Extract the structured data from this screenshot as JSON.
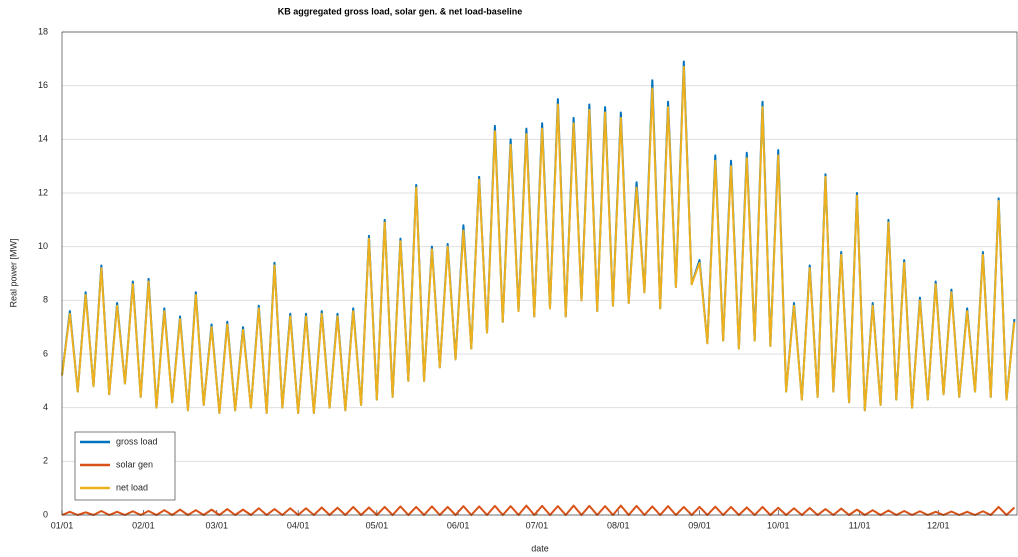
{
  "chart_data": {
    "type": "line",
    "title": "KB aggregated gross load, solar gen. & net load-baseline",
    "x_label": "date",
    "y_label": "Real power [MW]",
    "x": [
      "01/01",
      "01/04",
      "01/07",
      "01/10",
      "01/13",
      "01/16",
      "01/19",
      "01/22",
      "01/25",
      "01/28",
      "01/31",
      "02/03",
      "02/06",
      "02/09",
      "02/12",
      "02/15",
      "02/18",
      "02/21",
      "02/24",
      "02/27",
      "03/02",
      "03/05",
      "03/08",
      "03/11",
      "03/14",
      "03/17",
      "03/20",
      "03/23",
      "03/26",
      "03/29",
      "04/01",
      "04/04",
      "04/07",
      "04/10",
      "04/13",
      "04/16",
      "04/19",
      "04/22",
      "04/25",
      "04/28",
      "05/01",
      "05/04",
      "05/07",
      "05/10",
      "05/13",
      "05/16",
      "05/19",
      "05/22",
      "05/25",
      "05/28",
      "05/31",
      "06/03",
      "06/06",
      "06/09",
      "06/12",
      "06/15",
      "06/18",
      "06/21",
      "06/24",
      "06/27",
      "06/30",
      "07/03",
      "07/06",
      "07/09",
      "07/12",
      "07/15",
      "07/18",
      "07/21",
      "07/24",
      "07/27",
      "07/30",
      "08/02",
      "08/05",
      "08/08",
      "08/11",
      "08/14",
      "08/17",
      "08/20",
      "08/23",
      "08/26",
      "08/29",
      "09/01",
      "09/04",
      "09/07",
      "09/10",
      "09/13",
      "09/16",
      "09/19",
      "09/22",
      "09/25",
      "09/28",
      "10/01",
      "10/04",
      "10/07",
      "10/10",
      "10/13",
      "10/16",
      "10/19",
      "10/22",
      "10/25",
      "10/28",
      "10/31",
      "11/03",
      "11/06",
      "11/09",
      "11/12",
      "11/15",
      "11/18",
      "11/21",
      "11/24",
      "11/27",
      "11/30",
      "12/03",
      "12/06",
      "12/09",
      "12/12",
      "12/15",
      "12/18",
      "12/21",
      "12/24",
      "12/27",
      "12/30"
    ],
    "series": [
      {
        "name": "gross load",
        "color": "#0072bd",
        "values": [
          5.2,
          7.6,
          4.6,
          8.3,
          4.8,
          9.3,
          4.5,
          7.9,
          4.9,
          8.7,
          4.4,
          8.8,
          4.0,
          7.7,
          4.2,
          7.4,
          3.9,
          8.3,
          4.1,
          7.1,
          3.8,
          7.2,
          3.9,
          7.0,
          4.0,
          7.8,
          3.8,
          9.4,
          4.0,
          7.5,
          3.8,
          7.5,
          3.8,
          7.6,
          4.0,
          7.5,
          3.9,
          7.7,
          4.1,
          10.4,
          4.3,
          11.0,
          4.4,
          10.3,
          5.0,
          12.3,
          5.0,
          10.0,
          5.5,
          10.1,
          5.8,
          10.8,
          6.2,
          12.6,
          6.8,
          14.5,
          7.2,
          14.0,
          7.6,
          14.4,
          7.4,
          14.6,
          7.7,
          15.5,
          7.4,
          14.8,
          8.0,
          15.3,
          7.6,
          15.2,
          7.8,
          15.0,
          7.9,
          12.4,
          8.3,
          16.2,
          7.7,
          15.4,
          8.5,
          16.9,
          8.6,
          9.5,
          6.4,
          13.4,
          6.5,
          13.2,
          6.2,
          13.5,
          6.5,
          15.4,
          6.3,
          13.6,
          4.6,
          7.9,
          4.3,
          9.3,
          4.4,
          12.7,
          4.6,
          9.8,
          4.2,
          12.0,
          3.9,
          7.9,
          4.1,
          11.0,
          4.3,
          9.5,
          4.0,
          8.1,
          4.3,
          8.7,
          4.5,
          8.4,
          4.4,
          7.7,
          4.6,
          9.8,
          4.4,
          11.8,
          4.3,
          7.3
        ]
      },
      {
        "name": "solar gen",
        "color": "#d95319",
        "values": [
          0,
          0.12,
          0,
          0.1,
          0,
          0.15,
          0,
          0.12,
          0,
          0.14,
          0,
          0.15,
          0,
          0.18,
          0,
          0.2,
          0,
          0.18,
          0,
          0.2,
          0,
          0.22,
          0,
          0.2,
          0,
          0.25,
          0,
          0.22,
          0,
          0.25,
          0,
          0.25,
          0,
          0.28,
          0,
          0.27,
          0,
          0.3,
          0,
          0.28,
          0,
          0.3,
          0,
          0.32,
          0,
          0.3,
          0,
          0.32,
          0,
          0.3,
          0,
          0.33,
          0,
          0.32,
          0,
          0.34,
          0,
          0.33,
          0,
          0.35,
          0,
          0.34,
          0,
          0.33,
          0,
          0.35,
          0,
          0.34,
          0,
          0.33,
          0,
          0.35,
          0,
          0.34,
          0,
          0.32,
          0,
          0.33,
          0,
          0.3,
          0,
          0.3,
          0,
          0.31,
          0,
          0.3,
          0,
          0.28,
          0,
          0.3,
          0,
          0.27,
          0,
          0.25,
          0,
          0.26,
          0,
          0.22,
          0,
          0.24,
          0,
          0.2,
          0,
          0.18,
          0,
          0.17,
          0,
          0.15,
          0,
          0.14,
          0,
          0.12,
          0,
          0.13,
          0,
          0.12,
          0,
          0.14,
          0,
          0.3,
          0,
          0.28
        ]
      },
      {
        "name": "net load",
        "color": "#edb120",
        "values": [
          5.2,
          7.5,
          4.6,
          8.2,
          4.8,
          9.2,
          4.5,
          7.8,
          4.9,
          8.6,
          4.4,
          8.7,
          4.0,
          7.6,
          4.2,
          7.3,
          3.9,
          8.2,
          4.1,
          7.0,
          3.8,
          7.1,
          3.9,
          6.9,
          4.0,
          7.7,
          3.8,
          9.3,
          4.0,
          7.4,
          3.8,
          7.4,
          3.8,
          7.5,
          4.0,
          7.4,
          3.9,
          7.6,
          4.1,
          10.3,
          4.3,
          10.9,
          4.4,
          10.2,
          5.0,
          12.2,
          5.0,
          9.9,
          5.5,
          10.0,
          5.8,
          10.6,
          6.2,
          12.5,
          6.8,
          14.3,
          7.2,
          13.8,
          7.6,
          14.2,
          7.4,
          14.4,
          7.7,
          15.3,
          7.4,
          14.6,
          8.0,
          15.1,
          7.6,
          15.0,
          7.8,
          14.8,
          7.9,
          12.2,
          8.3,
          15.9,
          7.7,
          15.2,
          8.5,
          16.7,
          8.6,
          9.4,
          6.4,
          13.2,
          6.5,
          13.0,
          6.2,
          13.3,
          6.5,
          15.2,
          6.3,
          13.4,
          4.6,
          7.8,
          4.3,
          9.2,
          4.4,
          12.6,
          4.6,
          9.7,
          4.2,
          11.9,
          3.9,
          7.8,
          4.1,
          10.9,
          4.3,
          9.4,
          4.0,
          8.0,
          4.3,
          8.6,
          4.5,
          8.3,
          4.4,
          7.6,
          4.6,
          9.7,
          4.4,
          11.7,
          4.3,
          7.2
        ]
      }
    ],
    "xlim": [
      "01/01",
      "12/31"
    ],
    "xticks": [
      "01/01",
      "02/01",
      "03/01",
      "04/01",
      "05/01",
      "06/01",
      "07/01",
      "08/01",
      "09/01",
      "10/01",
      "11/01",
      "12/01"
    ],
    "ylim": [
      0,
      18
    ],
    "yticks": [
      0,
      2,
      4,
      6,
      8,
      10,
      12,
      14,
      16,
      18
    ],
    "grid": true,
    "legend": "lower left"
  }
}
